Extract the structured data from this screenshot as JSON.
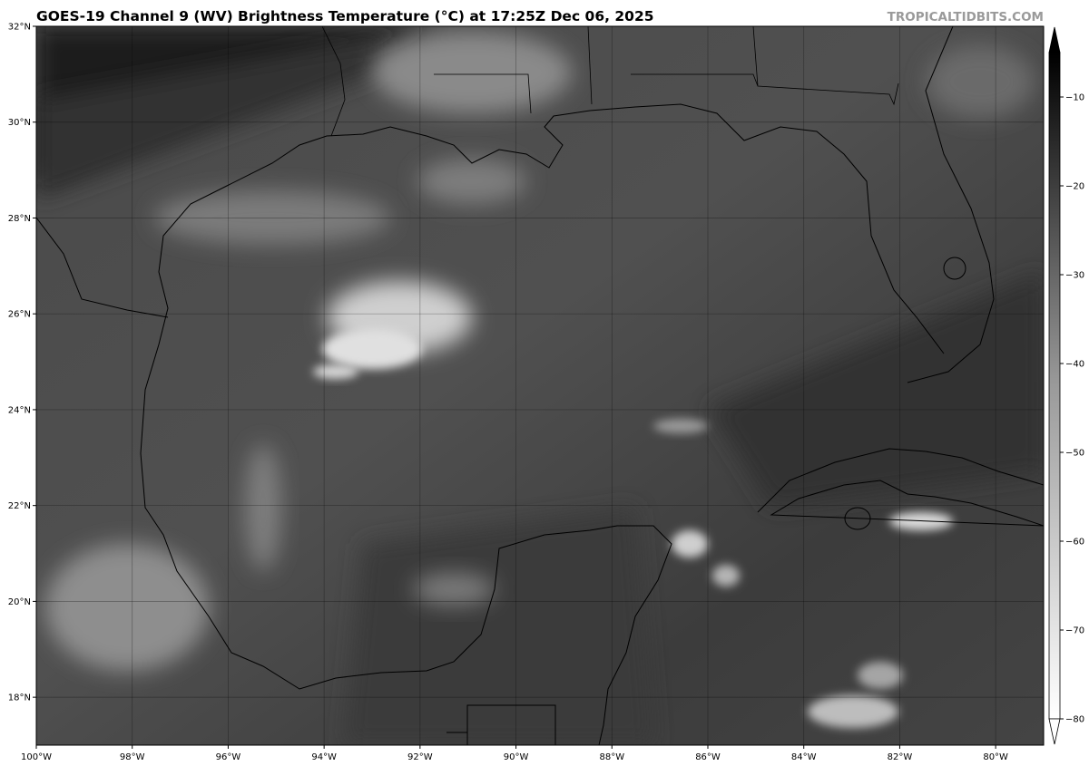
{
  "title": "GOES-19 Channel 9 (WV) Brightness Temperature (°C) at 17:25Z Dec 06, 2025",
  "watermark": "TROPICALTIDBITS.COM",
  "map": {
    "lon_range": [
      -100,
      -79
    ],
    "lat_range": [
      17,
      32
    ],
    "gridlines": true,
    "lon_labels": [
      "100°W",
      "98°W",
      "96°W",
      "94°W",
      "92°W",
      "90°W",
      "88°W",
      "86°W",
      "84°W",
      "82°W",
      "80°W"
    ],
    "lat_labels": [
      "32°N",
      "30°N",
      "28°N",
      "26°N",
      "24°N",
      "22°N",
      "20°N",
      "18°N"
    ]
  },
  "colorbar": {
    "range": [
      -80,
      -5
    ],
    "extend": "both",
    "colormap": "grayscale, white = cold, black = warm",
    "tick_labels": [
      "−10",
      "−20",
      "−30",
      "−40",
      "−50",
      "−60",
      "−70",
      "−80"
    ]
  }
}
